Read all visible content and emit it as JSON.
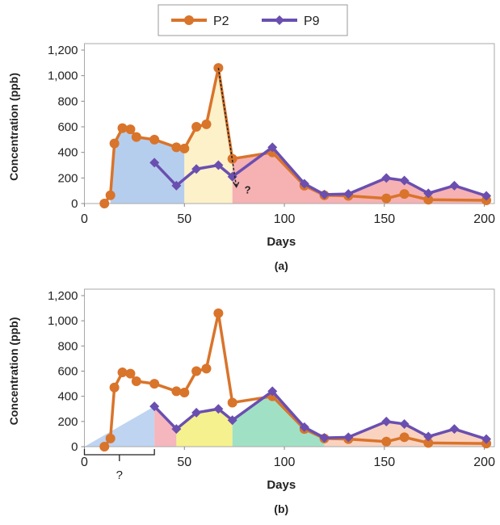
{
  "legend": {
    "placement": "top",
    "items": [
      {
        "name": "P2",
        "color": "#d9742b"
      },
      {
        "name": "P9",
        "color": "#6a4fb0"
      }
    ]
  },
  "chart_data": [
    {
      "type": "line",
      "panel_label": "(a)",
      "xlabel": "Days",
      "ylabel": "Concentration (ppb)",
      "xlim": [
        0,
        205
      ],
      "ylim": [
        0,
        1200
      ],
      "xticks": [
        "0",
        "50",
        "100",
        "150",
        "200"
      ],
      "yticks": [
        "0",
        "200",
        "400",
        "600",
        "800",
        "1,000",
        "1,200"
      ],
      "grid": false,
      "series": [
        {
          "name": "P2",
          "color": "#d9742b",
          "marker": "circle",
          "x": [
            10,
            13,
            15,
            19,
            23,
            26,
            35,
            46,
            50,
            56,
            61,
            67,
            74,
            94,
            110,
            120,
            132,
            151,
            160,
            172,
            201
          ],
          "y": [
            0,
            65,
            470,
            590,
            580,
            520,
            500,
            440,
            430,
            600,
            620,
            1060,
            350,
            400,
            140,
            65,
            60,
            40,
            75,
            30,
            25
          ]
        },
        {
          "name": "P9",
          "color": "#6a4fb0",
          "marker": "diamond",
          "x": [
            35,
            46,
            56,
            67,
            74,
            94,
            110,
            120,
            132,
            151,
            160,
            172,
            185,
            201
          ],
          "y": [
            320,
            140,
            270,
            300,
            210,
            440,
            155,
            70,
            75,
            200,
            180,
            80,
            140,
            60
          ]
        }
      ],
      "shaded_regions": [
        {
          "from": 13,
          "to": 50,
          "under": "P2",
          "color": "#a9c6ea"
        },
        {
          "from": 50,
          "to": 74,
          "under": "P2",
          "color": "#fbefbf"
        },
        {
          "from": 74,
          "to": 201,
          "under": "max",
          "color": "#f4a3a6"
        }
      ],
      "annotations": [
        {
          "type": "dashed-arrow",
          "from": [
            67,
            1060
          ],
          "to": [
            76,
            130
          ],
          "label": "?"
        }
      ]
    },
    {
      "type": "line",
      "panel_label": "(b)",
      "xlabel": "Days",
      "ylabel": "Concentration (ppb)",
      "xlim": [
        0,
        205
      ],
      "ylim": [
        0,
        1200
      ],
      "xticks": [
        "0",
        "50",
        "100",
        "150",
        "200"
      ],
      "yticks": [
        "0",
        "200",
        "400",
        "600",
        "800",
        "1,000",
        "1,200"
      ],
      "grid": false,
      "series": [
        {
          "name": "P2",
          "color": "#d9742b",
          "marker": "circle",
          "x": [
            10,
            13,
            15,
            19,
            23,
            26,
            35,
            46,
            50,
            56,
            61,
            67,
            74,
            94,
            110,
            120,
            132,
            151,
            160,
            172,
            201
          ],
          "y": [
            0,
            65,
            470,
            590,
            580,
            520,
            500,
            440,
            430,
            600,
            620,
            1060,
            350,
            400,
            140,
            65,
            60,
            40,
            75,
            30,
            25
          ]
        },
        {
          "name": "P9",
          "color": "#6a4fb0",
          "marker": "diamond",
          "x": [
            35,
            46,
            56,
            67,
            74,
            94,
            110,
            120,
            132,
            151,
            160,
            172,
            185,
            201
          ],
          "y": [
            320,
            140,
            270,
            300,
            210,
            440,
            155,
            70,
            75,
            200,
            180,
            80,
            140,
            60
          ]
        }
      ],
      "shaded_regions": [
        {
          "from": 0,
          "to": 35,
          "under": "ramp",
          "color": "#b3cdef"
        },
        {
          "from": 35,
          "to": 46,
          "under": "P9",
          "color": "#f5a9b2"
        },
        {
          "from": 46,
          "to": 74,
          "under": "P9",
          "color": "#f3ee7a"
        },
        {
          "from": 74,
          "to": 120,
          "under": "P9",
          "color": "#8fdcbc"
        },
        {
          "from": 120,
          "to": 201,
          "under": "P9",
          "color": "#f8cbb5"
        }
      ],
      "annotations": [
        {
          "type": "bracket",
          "from": 0,
          "to": 35,
          "label": "?"
        }
      ]
    }
  ]
}
